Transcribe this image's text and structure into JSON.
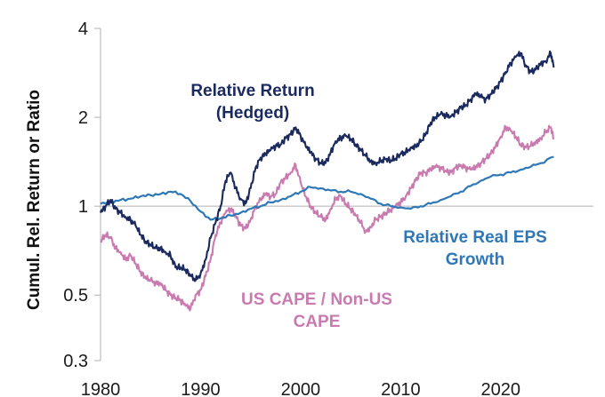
{
  "chart_data": {
    "type": "line",
    "title": "",
    "xlabel": "",
    "ylabel": "Cumul. Rel. Return or Ratio",
    "y_scale": "log",
    "xlim": [
      1980,
      2025
    ],
    "ylim": [
      0.3,
      4
    ],
    "x_ticks": [
      "1980",
      "1990",
      "2000",
      "2010",
      "2020"
    ],
    "y_ticks": [
      "0.3",
      "0.5",
      "1",
      "2",
      "4"
    ],
    "grid": false,
    "legend": "none (series labelled directly on the plot)",
    "colors": {
      "return": "#1b2a5e",
      "eps": "#2e78b7",
      "cape": "#c97bb0",
      "axis": "#b0b0b0"
    },
    "series": [
      {
        "key": "return",
        "name": "Relative Return (Hedged)",
        "label_lines": [
          "Relative Return",
          "(Hedged)"
        ],
        "x": [
          1980,
          1980.5,
          1981,
          1981.5,
          1982,
          1982.5,
          1983,
          1983.5,
          1984,
          1984.5,
          1985,
          1985.5,
          1986,
          1986.5,
          1987,
          1987.5,
          1988,
          1988.5,
          1989,
          1989.5,
          1990,
          1990.5,
          1991,
          1991.5,
          1992,
          1992.5,
          1993,
          1993.5,
          1994,
          1994.5,
          1995,
          1995.5,
          1996,
          1996.5,
          1997,
          1997.5,
          1998,
          1998.5,
          1999,
          1999.5,
          2000,
          2000.5,
          2001,
          2001.5,
          2002,
          2002.5,
          2003,
          2003.5,
          2004,
          2004.5,
          2005,
          2005.5,
          2006,
          2006.5,
          2007,
          2007.5,
          2008,
          2008.5,
          2009,
          2009.5,
          2010,
          2010.5,
          2011,
          2011.5,
          2012,
          2012.5,
          2013,
          2013.5,
          2014,
          2014.5,
          2015,
          2015.5,
          2016,
          2016.5,
          2017,
          2017.5,
          2018,
          2018.5,
          2019,
          2019.5,
          2020,
          2020.5,
          2021,
          2021.5,
          2022,
          2022.5,
          2023,
          2023.5,
          2024,
          2024.5,
          2025,
          2025.3
        ],
        "y": [
          0.95,
          1.0,
          1.05,
          0.98,
          0.95,
          0.92,
          0.9,
          0.86,
          0.8,
          0.76,
          0.74,
          0.72,
          0.72,
          0.7,
          0.68,
          0.62,
          0.62,
          0.61,
          0.58,
          0.56,
          0.59,
          0.66,
          0.78,
          0.88,
          1.0,
          1.22,
          1.3,
          1.15,
          1.06,
          1.02,
          1.15,
          1.35,
          1.46,
          1.5,
          1.55,
          1.6,
          1.62,
          1.7,
          1.75,
          1.85,
          1.73,
          1.6,
          1.52,
          1.45,
          1.4,
          1.4,
          1.52,
          1.66,
          1.7,
          1.73,
          1.69,
          1.62,
          1.55,
          1.48,
          1.42,
          1.4,
          1.42,
          1.44,
          1.43,
          1.45,
          1.5,
          1.52,
          1.58,
          1.6,
          1.65,
          1.75,
          1.92,
          2.0,
          2.05,
          2.03,
          2.02,
          2.08,
          2.15,
          2.2,
          2.3,
          2.4,
          2.35,
          2.3,
          2.4,
          2.5,
          2.65,
          2.85,
          3.05,
          3.2,
          3.3,
          3.0,
          2.85,
          2.9,
          3.05,
          3.1,
          3.3,
          2.95
        ]
      },
      {
        "key": "eps",
        "name": "Relative Real EPS Growth",
        "label_lines": [
          "Relative Real EPS",
          "Growth"
        ],
        "x": [
          1980,
          1981,
          1982,
          1983,
          1984,
          1985,
          1986,
          1987,
          1988,
          1989,
          1990,
          1991,
          1992,
          1993,
          1994,
          1995,
          1996,
          1997,
          1998,
          1999,
          2000,
          2001,
          2002,
          2003,
          2004,
          2005,
          2006,
          2007,
          2008,
          2009,
          2010,
          2011,
          2012,
          2013,
          2014,
          2015,
          2016,
          2017,
          2018,
          2019,
          2020,
          2021,
          2022,
          2023,
          2024,
          2025.3
        ],
        "y": [
          1.02,
          1.03,
          1.05,
          1.06,
          1.08,
          1.09,
          1.1,
          1.12,
          1.1,
          1.04,
          0.96,
          0.9,
          0.91,
          0.93,
          0.95,
          0.98,
          1.0,
          1.03,
          1.05,
          1.08,
          1.12,
          1.16,
          1.15,
          1.13,
          1.12,
          1.12,
          1.1,
          1.06,
          1.02,
          1.0,
          0.99,
          0.98,
          1.0,
          1.02,
          1.05,
          1.08,
          1.12,
          1.17,
          1.22,
          1.26,
          1.28,
          1.3,
          1.33,
          1.36,
          1.4,
          1.47
        ]
      },
      {
        "key": "cape",
        "name": "US CAPE / Non-US CAPE",
        "label_lines": [
          "US CAPE / Non-US",
          "CAPE"
        ],
        "x": [
          1980,
          1980.5,
          1981,
          1981.5,
          1982,
          1982.5,
          1983,
          1983.5,
          1984,
          1984.5,
          1985,
          1985.5,
          1986,
          1986.5,
          1987,
          1987.5,
          1988,
          1988.5,
          1989,
          1989.5,
          1990,
          1990.5,
          1991,
          1991.5,
          1992,
          1992.5,
          1993,
          1993.5,
          1994,
          1994.5,
          1995,
          1995.5,
          1996,
          1996.5,
          1997,
          1997.5,
          1998,
          1998.5,
          1999,
          1999.5,
          2000,
          2000.5,
          2001,
          2001.5,
          2002,
          2002.5,
          2003,
          2003.5,
          2004,
          2004.5,
          2005,
          2005.5,
          2006,
          2006.5,
          2007,
          2007.5,
          2008,
          2008.5,
          2009,
          2009.5,
          2010,
          2010.5,
          2011,
          2011.5,
          2012,
          2012.5,
          2013,
          2013.5,
          2014,
          2014.5,
          2015,
          2015.5,
          2016,
          2016.5,
          2017,
          2017.5,
          2018,
          2018.5,
          2019,
          2019.5,
          2020,
          2020.5,
          2021,
          2021.5,
          2022,
          2022.5,
          2023,
          2023.5,
          2024,
          2024.5,
          2025,
          2025.3
        ],
        "y": [
          0.76,
          0.8,
          0.78,
          0.72,
          0.7,
          0.66,
          0.68,
          0.64,
          0.6,
          0.57,
          0.56,
          0.55,
          0.55,
          0.52,
          0.5,
          0.49,
          0.48,
          0.46,
          0.45,
          0.5,
          0.52,
          0.58,
          0.66,
          0.8,
          0.88,
          0.95,
          0.98,
          0.93,
          0.86,
          0.84,
          0.9,
          1.0,
          1.05,
          1.1,
          1.08,
          1.1,
          1.2,
          1.25,
          1.3,
          1.38,
          1.2,
          1.08,
          1.0,
          0.95,
          0.92,
          0.9,
          0.98,
          1.06,
          1.08,
          1.02,
          0.98,
          0.93,
          0.88,
          0.82,
          0.85,
          0.9,
          0.92,
          0.95,
          0.97,
          1.0,
          1.03,
          1.08,
          1.15,
          1.22,
          1.3,
          1.3,
          1.33,
          1.36,
          1.35,
          1.32,
          1.3,
          1.35,
          1.38,
          1.35,
          1.33,
          1.35,
          1.4,
          1.45,
          1.5,
          1.6,
          1.72,
          1.85,
          1.8,
          1.72,
          1.62,
          1.58,
          1.6,
          1.65,
          1.7,
          1.78,
          1.85,
          1.7
        ]
      }
    ]
  }
}
